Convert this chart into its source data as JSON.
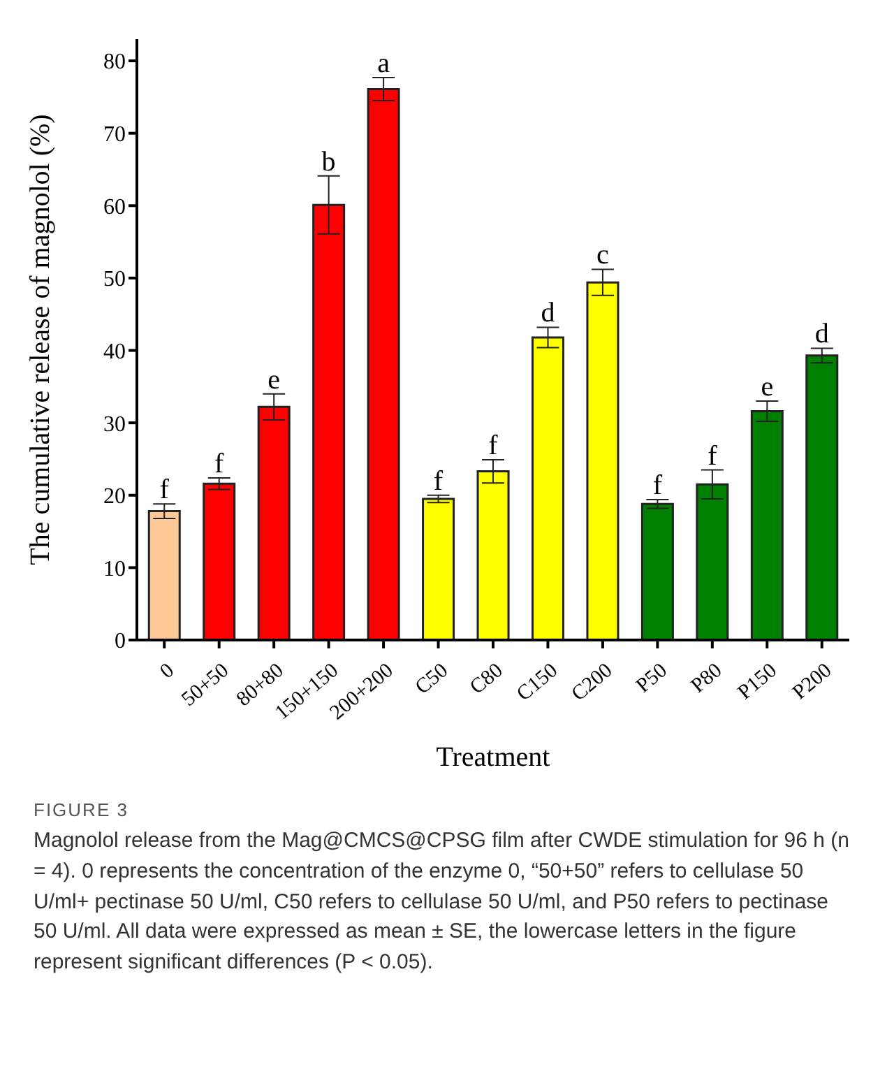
{
  "chart_data": {
    "type": "bar",
    "xlabel": "Treatment",
    "ylabel": "The cumulative release of magnolol (%)",
    "categories": [
      "0",
      "50+50",
      "80+80",
      "150+150",
      "200+200",
      "C50",
      "C80",
      "C150",
      "C200",
      "P50",
      "P80",
      "P150",
      "P200"
    ],
    "values": [
      17.8,
      21.6,
      32.2,
      60.1,
      76.1,
      19.5,
      23.3,
      41.8,
      49.4,
      18.8,
      21.5,
      31.6,
      39.3
    ],
    "errors": [
      1.0,
      0.8,
      1.8,
      4.0,
      1.6,
      0.5,
      1.6,
      1.4,
      1.8,
      0.6,
      2.0,
      1.4,
      1.0
    ],
    "colors": [
      "#fdc896",
      "#ff0000",
      "#ff0000",
      "#ff0000",
      "#ff0000",
      "#ffff00",
      "#ffff00",
      "#ffff00",
      "#ffff00",
      "#008000",
      "#008000",
      "#008000",
      "#008000"
    ],
    "ylim": [
      0,
      83
    ],
    "yticks": [
      0,
      10,
      20,
      30,
      40,
      50,
      60,
      70,
      80
    ],
    "grid": false,
    "legend": false,
    "annotations": [
      {
        "text": "f",
        "x": "0",
        "y": 18.8
      },
      {
        "text": "f",
        "x": "50+50",
        "y": 22.4
      },
      {
        "text": "e",
        "x": "80+80",
        "y": 34.0
      },
      {
        "text": "b",
        "x": "150+150",
        "y": 64.1
      },
      {
        "text": "a",
        "x": "200+200",
        "y": 77.7
      },
      {
        "text": "f",
        "x": "C50",
        "y": 20.0
      },
      {
        "text": "f",
        "x": "C80",
        "y": 24.9
      },
      {
        "text": "d",
        "x": "C150",
        "y": 43.2
      },
      {
        "text": "c",
        "x": "C200",
        "y": 51.2
      },
      {
        "text": "f",
        "x": "P50",
        "y": 19.4
      },
      {
        "text": "f",
        "x": "P80",
        "y": 23.5
      },
      {
        "text": "e",
        "x": "P150",
        "y": 33.0
      },
      {
        "text": "d",
        "x": "P200",
        "y": 40.3
      },
      "FIGURE 3",
      "Magnolol release from the Mag@CMCS@CPSG film after CWDE stimulation for 96 h (n = 4). 0 represents the concentration of the enzyme 0, “50+50” refers to cellulase 50 U/ml+ pectinase 50 U/ml, C50 refers to cellulase 50 U/ml, and P50 refers to pectinase 50 U/ml. All data were expressed as mean ± SE, the lowercase letters in the figure represent significant differences (P < 0.05)."
    ]
  }
}
